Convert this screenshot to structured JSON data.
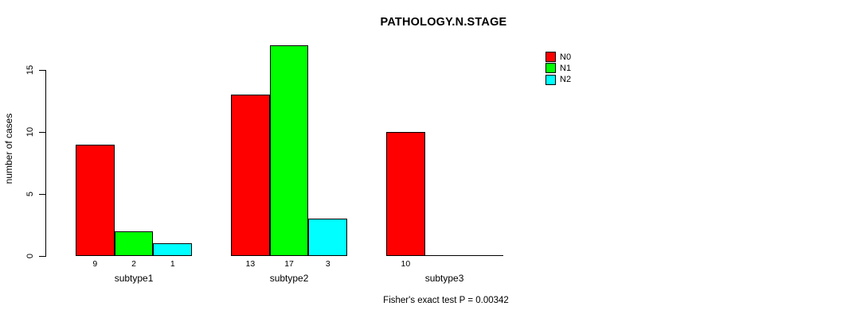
{
  "chart_data": {
    "type": "bar",
    "title": "PATHOLOGY.N.STAGE",
    "ylabel": "number of cases",
    "xlabel": "",
    "categories": [
      "subtype1",
      "subtype2",
      "subtype3"
    ],
    "series": [
      {
        "name": "N0",
        "color": "#ff0000",
        "values": [
          9,
          13,
          10
        ]
      },
      {
        "name": "N1",
        "color": "#00ff00",
        "values": [
          2,
          17,
          0
        ]
      },
      {
        "name": "N2",
        "color": "#00ffff",
        "values": [
          1,
          3,
          0
        ]
      }
    ],
    "bar_value_labels": [
      [
        "9",
        "13",
        "10"
      ],
      [
        "2",
        "17",
        ""
      ],
      [
        "1",
        "3",
        ""
      ]
    ],
    "yticks": [
      0,
      5,
      10,
      15
    ],
    "ylim": [
      0,
      17
    ],
    "grid": false,
    "legend_position": "right",
    "legend_entries": [
      "N0",
      "N1",
      "N2"
    ],
    "annotation": "Fisher's exact test P = 0.00342",
    "bar_border_color": "#000000",
    "axis_color": "#000000"
  }
}
